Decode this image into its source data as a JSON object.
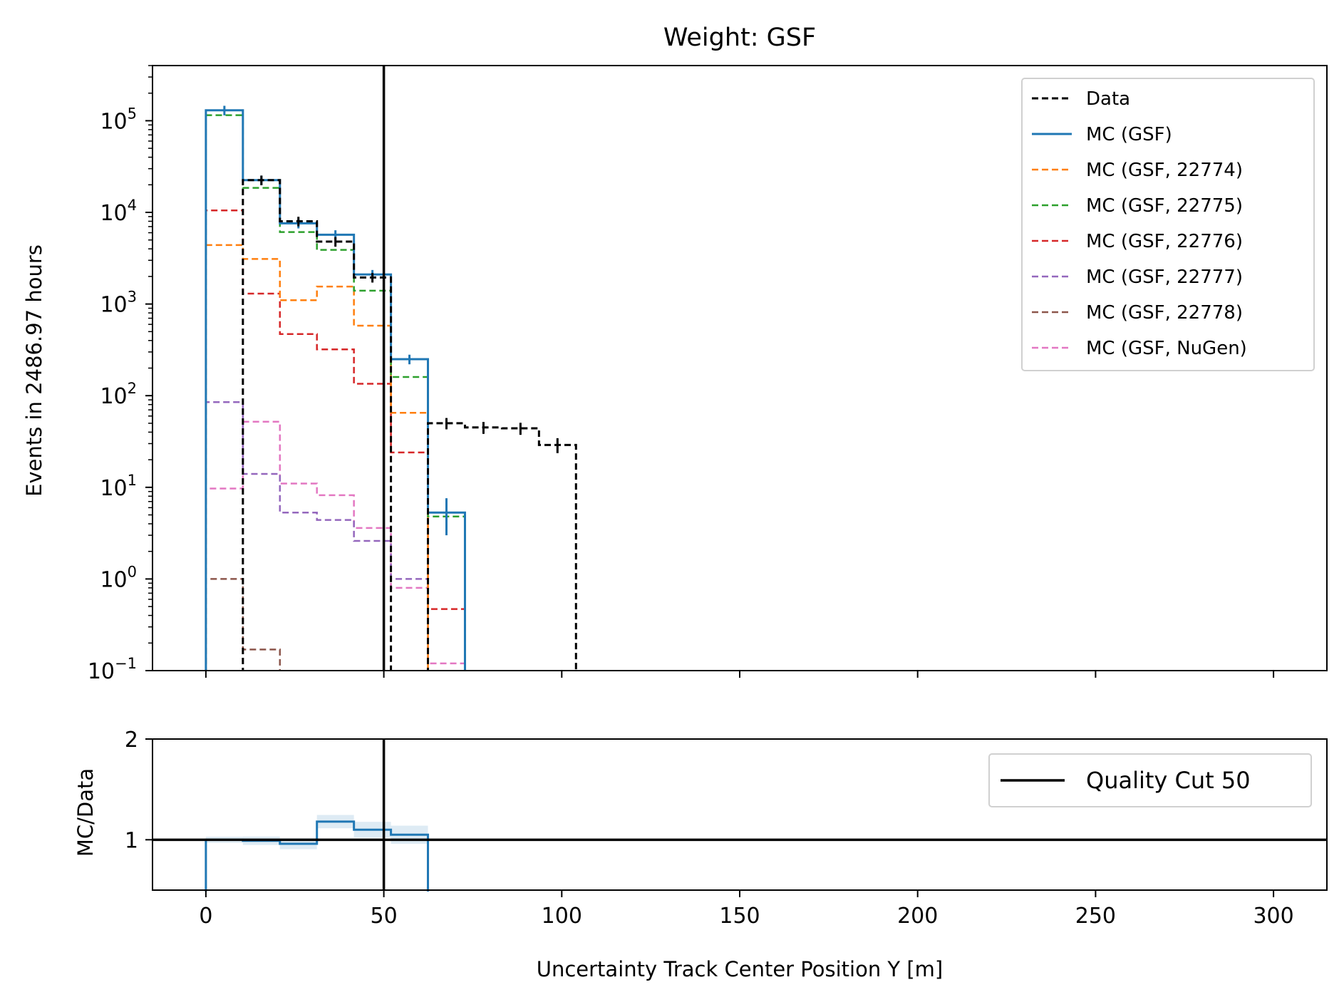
{
  "chart_data": [
    {
      "type": "step-histogram",
      "title": "Weight: GSF",
      "xlabel": "",
      "ylabel": "Events in 2486.97 hours",
      "yscale": "log",
      "xlim": [
        -15,
        315
      ],
      "ylim": [
        0.1,
        400000
      ],
      "ytick_labels": [
        {
          "base": "10",
          "exp": "−1"
        },
        {
          "base": "10",
          "exp": "0"
        },
        {
          "base": "10",
          "exp": "1"
        },
        {
          "base": "10",
          "exp": "2"
        },
        {
          "base": "10",
          "exp": "3"
        },
        {
          "base": "10",
          "exp": "4"
        },
        {
          "base": "10",
          "exp": "5"
        }
      ],
      "bin_edges": [
        0,
        10.4,
        20.8,
        31.2,
        41.6,
        52,
        62.4,
        72.8,
        83.2,
        93.6,
        104
      ],
      "vline": {
        "x": 50,
        "color": "#000000"
      },
      "legend_position": "upper right",
      "series": [
        {
          "name": "Data",
          "color": "#000000",
          "dash": true,
          "width": 3,
          "values": [
            null,
            22500,
            8000,
            4800,
            1950,
            null,
            50,
            45,
            44,
            29
          ],
          "errors": true
        },
        {
          "name": "MC (GSF)",
          "color": "#1f77b4",
          "dash": false,
          "width": 3,
          "values": [
            130000,
            22500,
            7600,
            5700,
            2100,
            250,
            5.3,
            null,
            null,
            null
          ],
          "errors": true
        },
        {
          "name": "MC (GSF, 22774)",
          "color": "#ff7f0e",
          "dash": true,
          "width": 2.5,
          "values": [
            4400,
            3100,
            1100,
            1550,
            580,
            65,
            null,
            null,
            null,
            null
          ]
        },
        {
          "name": "MC (GSF, 22775)",
          "color": "#2ca02c",
          "dash": true,
          "width": 2.5,
          "values": [
            115000,
            18500,
            6100,
            3900,
            1400,
            160,
            4.8,
            null,
            null,
            null
          ]
        },
        {
          "name": "MC (GSF, 22776)",
          "color": "#d62728",
          "dash": true,
          "width": 2.5,
          "values": [
            10500,
            1300,
            470,
            320,
            135,
            24,
            0.47,
            null,
            null,
            null
          ]
        },
        {
          "name": "MC (GSF, 22777)",
          "color": "#9467bd",
          "dash": true,
          "width": 2.5,
          "values": [
            85,
            14,
            5.3,
            4.4,
            2.6,
            1.0,
            null,
            null,
            null,
            null
          ]
        },
        {
          "name": "MC (GSF, 22778)",
          "color": "#8c564b",
          "dash": true,
          "width": 2.5,
          "values": [
            1.0,
            0.17,
            null,
            null,
            null,
            null,
            null,
            null,
            null,
            null
          ]
        },
        {
          "name": "MC (GSF, NuGen)",
          "color": "#e377c2",
          "dash": true,
          "width": 2.5,
          "values": [
            9.7,
            52,
            11,
            8.2,
            3.6,
            0.8,
            0.12,
            null,
            null,
            null
          ]
        }
      ]
    },
    {
      "type": "step-histogram",
      "title": "",
      "xlabel": "Uncertainty Track Center Position Y [m]",
      "ylabel": "MC/Data",
      "yscale": "linear",
      "xlim": [
        -15,
        315
      ],
      "ylim": [
        0.5,
        2
      ],
      "yticks": [
        1,
        2
      ],
      "ytick_labels": [
        "1",
        "2"
      ],
      "xticks": [
        0,
        50,
        100,
        150,
        200,
        250,
        300
      ],
      "xtick_labels": [
        "0",
        "50",
        "100",
        "150",
        "200",
        "250",
        "300"
      ],
      "bin_edges": [
        0,
        10.4,
        20.8,
        31.2,
        41.6,
        52,
        62.4
      ],
      "hline": {
        "y": 1,
        "color": "#000000"
      },
      "vline": {
        "x": 50,
        "color": "#000000",
        "label": "Quality Cut 50"
      },
      "legend_position": "upper right",
      "series": [
        {
          "name": "",
          "color": "#1f77b4",
          "values": [
            1.0,
            0.99,
            0.96,
            1.18,
            1.1,
            1.05
          ]
        }
      ]
    }
  ]
}
